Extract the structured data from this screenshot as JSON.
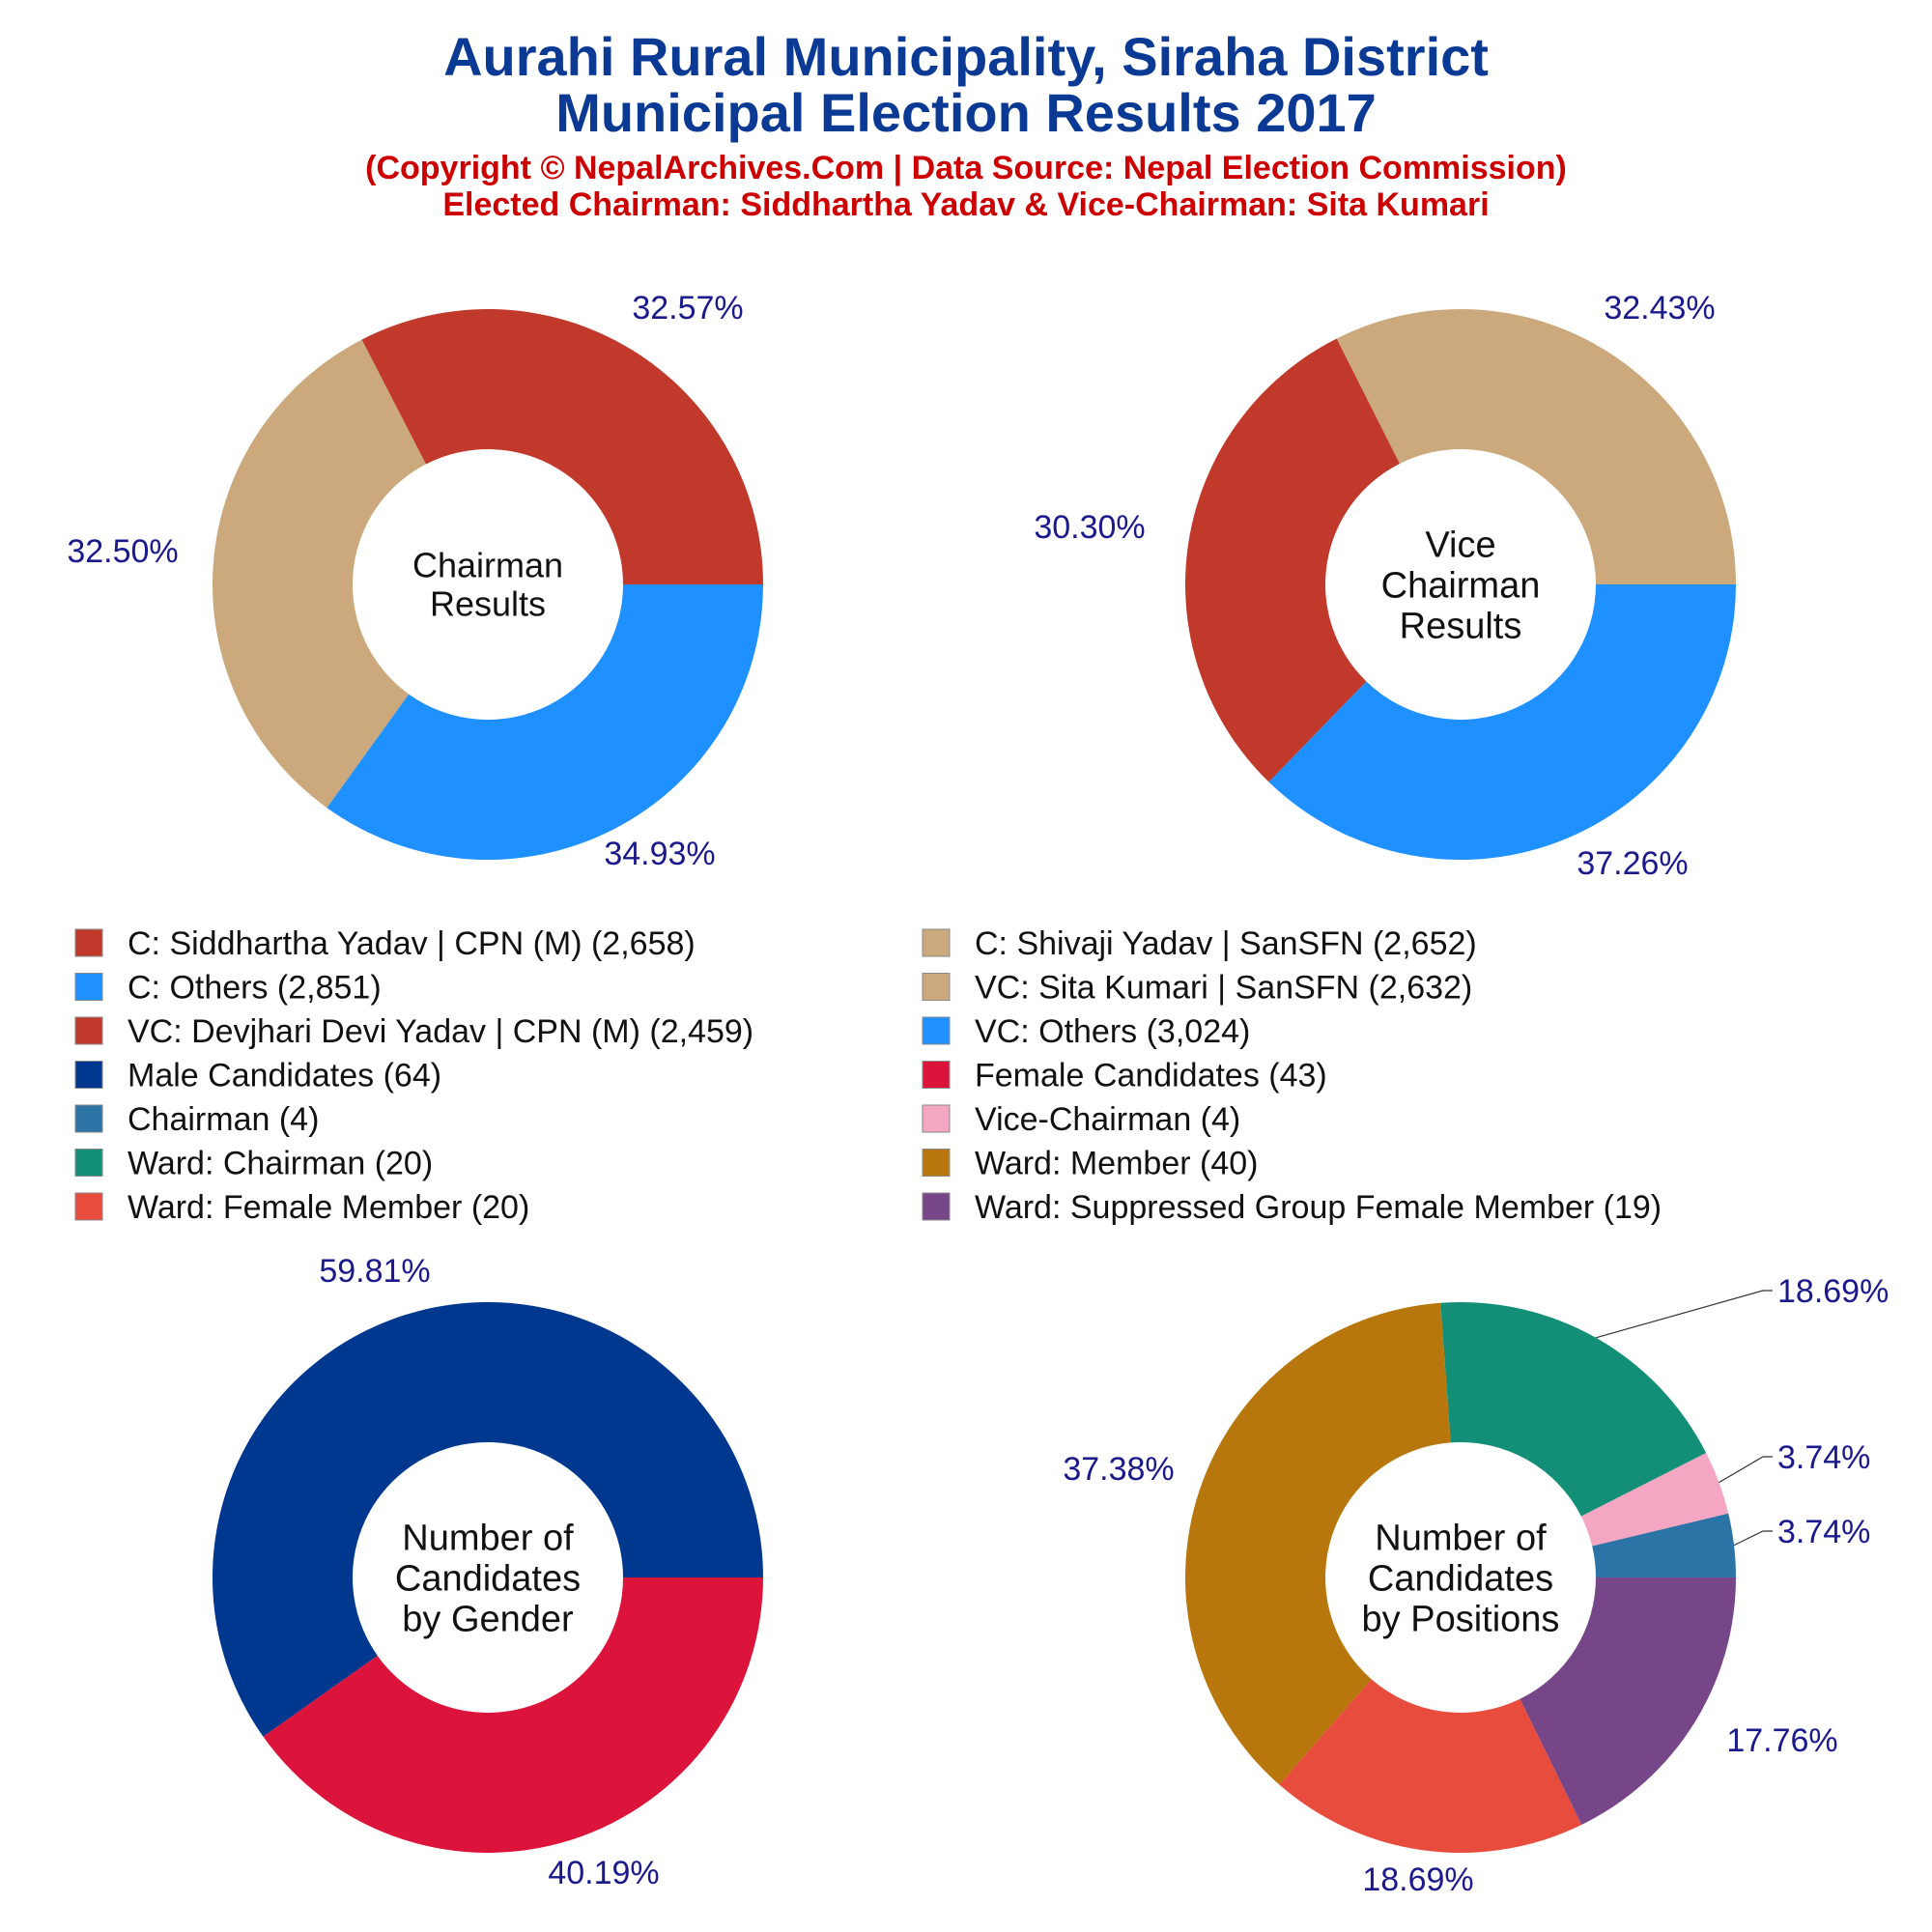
{
  "header": {
    "title_line1": "Aurahi Rural Municipality, Siraha District",
    "title_line2": "Municipal Election Results 2017",
    "subtitle_line1": "(Copyright © NepalArchives.Com | Data Source: Nepal Election Commission)",
    "subtitle_line2": "Elected Chairman: Siddhartha Yadav & Vice-Chairman: Sita Kumari"
  },
  "colors": {
    "title": "#0b3a94",
    "subtitle": "#cc0000",
    "percent_label": "#1a1a8c"
  },
  "legend": {
    "items": [
      {
        "label": "C: Siddhartha Yadav | CPN (M) (2,658)",
        "color": "#c0392b"
      },
      {
        "label": "C: Shivaji Yadav | SanSFN (2,652)",
        "color": "#cba97c"
      },
      {
        "label": "C: Others (2,851)",
        "color": "#1e90ff"
      },
      {
        "label": "VC: Sita Kumari | SanSFN (2,632)",
        "color": "#cba97c"
      },
      {
        "label": "VC: Devjhari Devi Yadav | CPN (M) (2,459)",
        "color": "#c0392b"
      },
      {
        "label": "VC: Others (3,024)",
        "color": "#1e90ff"
      },
      {
        "label": "Male Candidates (64)",
        "color": "#00388f"
      },
      {
        "label": "Female Candidates (43)",
        "color": "#dc143c"
      },
      {
        "label": "Chairman (4)",
        "color": "#2c73a6"
      },
      {
        "label": "Vice-Chairman (4)",
        "color": "#f4a6c3"
      },
      {
        "label": "Ward: Chairman (20)",
        "color": "#138f77"
      },
      {
        "label": "Ward: Member (40)",
        "color": "#b8770d"
      },
      {
        "label": "Ward: Female Member (20)",
        "color": "#e74c3c"
      },
      {
        "label": "Ward: Suppressed Group Female Member (19)",
        "color": "#764689"
      }
    ]
  },
  "chart_data": [
    {
      "type": "pie",
      "center_label": [
        "Chairman",
        "Results"
      ],
      "slices": [
        {
          "name": "C: Siddhartha Yadav | CPN (M)",
          "value": 2658,
          "label": "32.57%",
          "color": "#c0392b"
        },
        {
          "name": "C: Shivaji Yadav | SanSFN",
          "value": 2652,
          "label": "32.50%",
          "color": "#cba97c"
        },
        {
          "name": "C: Others",
          "value": 2851,
          "label": "34.93%",
          "color": "#1e90ff"
        }
      ]
    },
    {
      "type": "pie",
      "center_label": [
        "Vice",
        "Chairman",
        "Results"
      ],
      "slices": [
        {
          "name": "VC: Sita Kumari | SanSFN",
          "value": 2632,
          "label": "32.43%",
          "color": "#cba97c"
        },
        {
          "name": "VC: Devjhari Devi Yadav | CPN (M)",
          "value": 2459,
          "label": "30.30%",
          "color": "#c0392b"
        },
        {
          "name": "VC: Others",
          "value": 3024,
          "label": "37.26%",
          "color": "#1e90ff"
        }
      ]
    },
    {
      "type": "pie",
      "center_label": [
        "Number of",
        "Candidates",
        "by Gender"
      ],
      "slices": [
        {
          "name": "Male Candidates",
          "value": 64,
          "label": "59.81%",
          "color": "#00388f"
        },
        {
          "name": "Female Candidates",
          "value": 43,
          "label": "40.19%",
          "color": "#dc143c"
        }
      ]
    },
    {
      "type": "pie",
      "center_label": [
        "Number of",
        "Candidates",
        "by Positions"
      ],
      "slices": [
        {
          "name": "Chairman",
          "value": 4,
          "label": "3.74%",
          "color": "#2c73a6"
        },
        {
          "name": "Vice-Chairman",
          "value": 4,
          "label": "3.74%",
          "color": "#f4a6c3"
        },
        {
          "name": "Ward: Chairman",
          "value": 20,
          "label": "18.69%",
          "color": "#138f77"
        },
        {
          "name": "Ward: Member",
          "value": 40,
          "label": "37.38%",
          "color": "#b8770d"
        },
        {
          "name": "Ward: Female Member",
          "value": 20,
          "label": "18.69%",
          "color": "#e74c3c"
        },
        {
          "name": "Ward: Suppressed Group Female Member",
          "value": 19,
          "label": "17.76%",
          "color": "#764689"
        }
      ]
    }
  ]
}
